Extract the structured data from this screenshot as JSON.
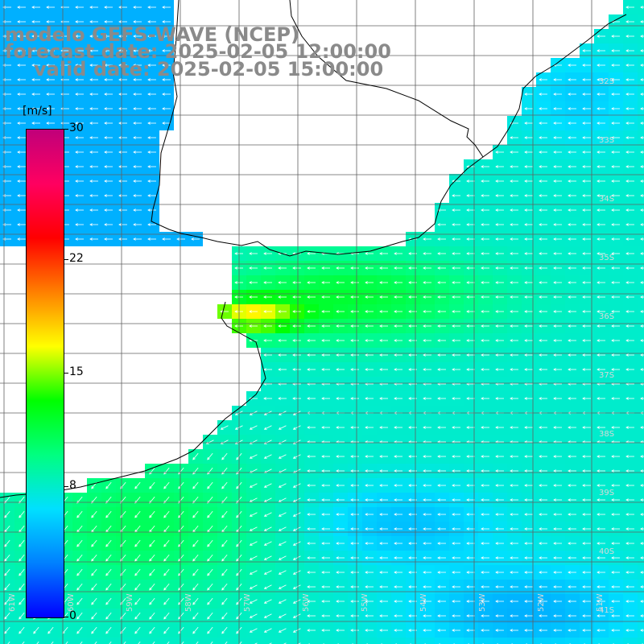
{
  "header": {
    "line1": "modelo GEFS-WAVE (NCEP)",
    "line2": "forecast date: 2025-02-05 12:00:00",
    "line3": "valid date: 2025-02-05 15:00:00"
  },
  "colorbar": {
    "unit": "[m/s]",
    "ticks": [
      {
        "value": 30,
        "label": "30"
      },
      {
        "value": 22,
        "label": "22"
      },
      {
        "value": 15,
        "label": "15"
      },
      {
        "value": 8,
        "label": "8"
      },
      {
        "value": 0,
        "label": "0"
      }
    ],
    "min": 0,
    "max": 30,
    "gradient_colors": [
      "#0000ff",
      "#0080ff",
      "#00e0ff",
      "#00ff80",
      "#00ff00",
      "#ffff00",
      "#ff8000",
      "#ff0000",
      "#ff0060",
      "#c0007a"
    ]
  },
  "map_labels": {
    "lat_labels": [
      "32S",
      "33S",
      "34S",
      "35S",
      "36S",
      "37S",
      "38S",
      "39S",
      "40S",
      "41S"
    ],
    "lon_labels": [
      "61W",
      "60W",
      "59W",
      "58W",
      "57W",
      "56W",
      "55W",
      "54W",
      "53W",
      "52W",
      "51W"
    ]
  },
  "colors": {
    "land": "#ffffff",
    "coast": "#000000",
    "grid": "#606060",
    "arrow": "#ffffff",
    "title": "#8a8a8a"
  }
}
